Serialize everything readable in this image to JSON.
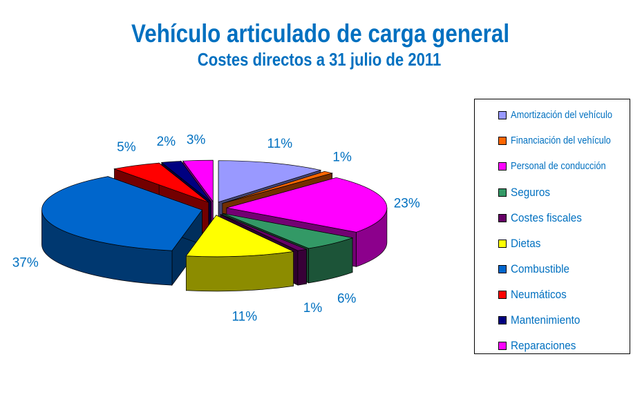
{
  "chart_data": {
    "type": "pie",
    "title": "Vehículo articulado de carga general",
    "subtitle": "Costes directos a 31 julio de 2011",
    "slices": [
      {
        "name": "Amortización del vehículo",
        "value": 11,
        "label": "11%",
        "color": "#9999ff"
      },
      {
        "name": "Financiación del vehículo",
        "value": 1,
        "label": "1%",
        "color": "#ff6600"
      },
      {
        "name": "Personal de conducción",
        "value": 23,
        "label": "23%",
        "color": "#ff00ff"
      },
      {
        "name": "Seguros",
        "value": 6,
        "label": "6%",
        "color": "#339966"
      },
      {
        "name": "Costes fiscales",
        "value": 1,
        "label": "1%",
        "color": "#660066"
      },
      {
        "name": "Dietas",
        "value": 11,
        "label": "11%",
        "color": "#ffff00"
      },
      {
        "name": "Combustible",
        "value": 37,
        "label": "37%",
        "color": "#0066cc"
      },
      {
        "name": "Neumáticos",
        "value": 5,
        "label": "5%",
        "color": "#ff0000"
      },
      {
        "name": "Mantenimiento",
        "value": 2,
        "label": "2%",
        "color": "#000080"
      },
      {
        "name": "Reparaciones",
        "value": 3,
        "label": "3%",
        "color": "#ff00ff"
      }
    ],
    "legend_position": "right",
    "exploded": true,
    "three_d": true
  }
}
